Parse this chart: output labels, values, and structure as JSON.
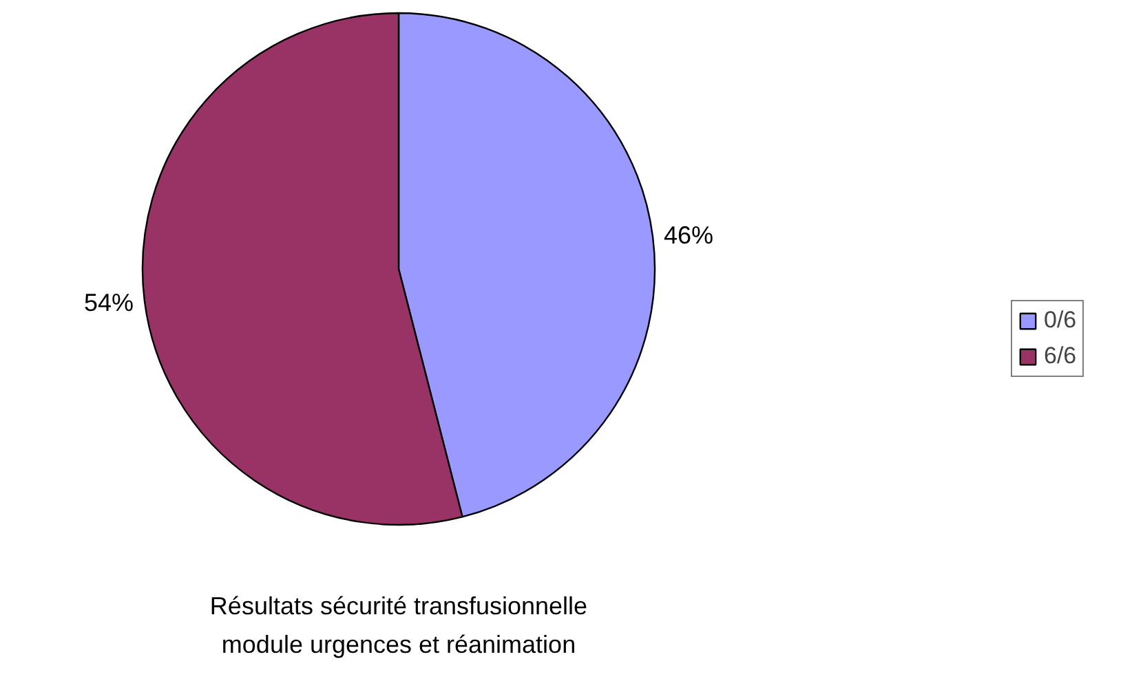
{
  "chart_data": {
    "type": "pie",
    "title": "Résultats sécurité transfusionnelle\nmodule urgences et réanimation",
    "categories": [
      "0/6",
      "6/6"
    ],
    "values": [
      46,
      54
    ],
    "colors": [
      "#9999ff",
      "#993366"
    ],
    "value_labels": [
      "46%",
      "54%"
    ],
    "legend": "right"
  }
}
